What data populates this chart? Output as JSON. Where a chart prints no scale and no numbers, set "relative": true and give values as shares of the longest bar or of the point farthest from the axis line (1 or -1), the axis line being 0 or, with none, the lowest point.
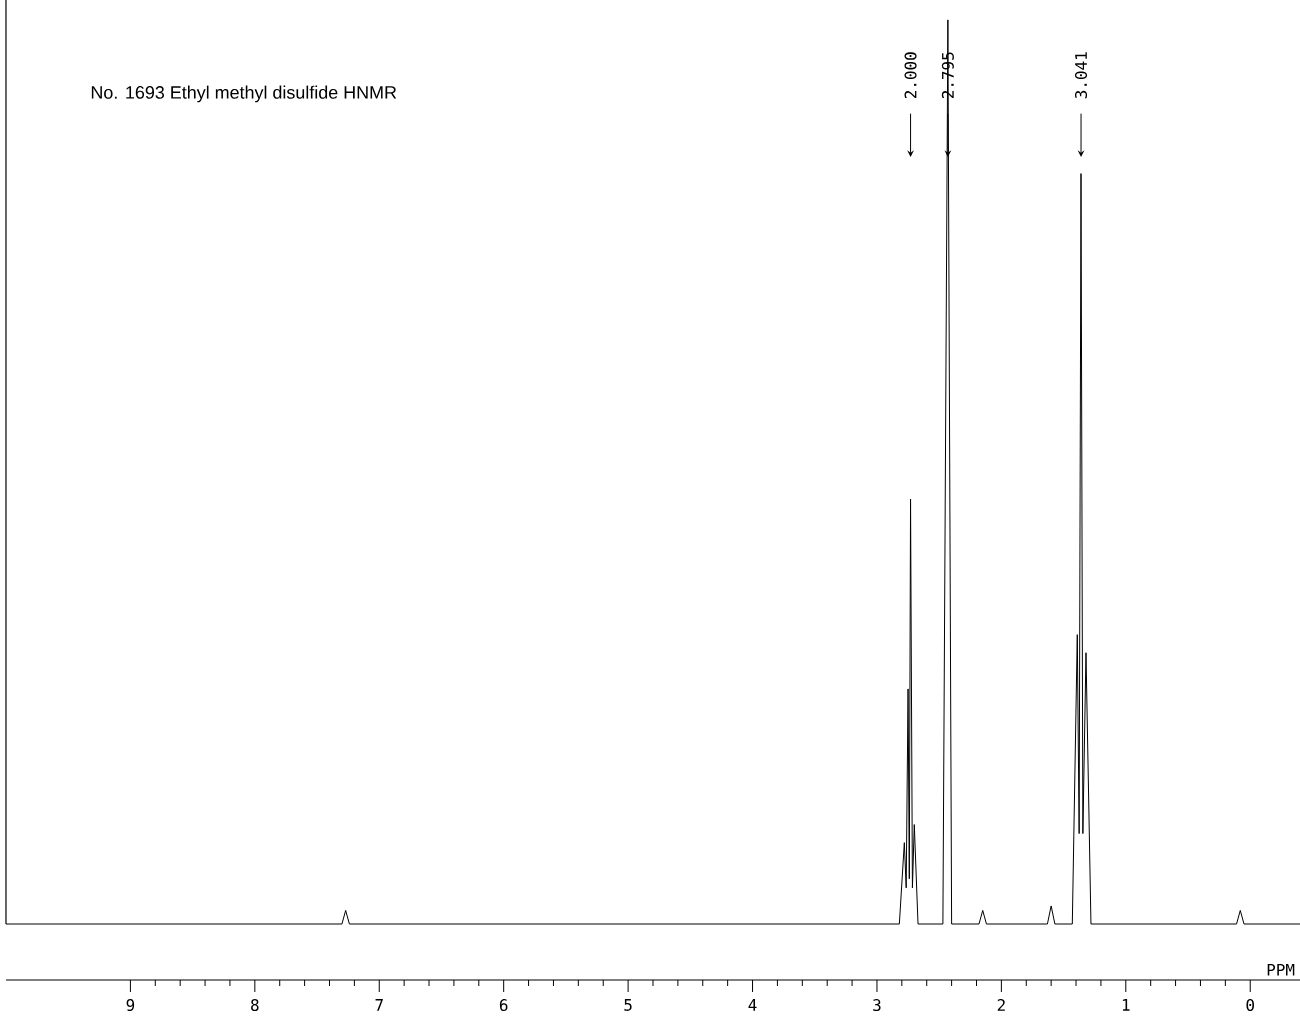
{
  "chart_data": {
    "type": "line",
    "title": "No. 1693 Ethyl methyl disulfide HNMR",
    "xlabel": "PPM",
    "relative": true,
    "xlim": [
      10,
      -0.4
    ],
    "xticks": [
      9,
      8,
      7,
      6,
      5,
      4,
      3,
      2,
      1,
      0
    ],
    "tick_labels": "x",
    "marker": "none",
    "line_style": "solid",
    "annotations": [
      {
        "text": "2.000",
        "x": 2.73
      },
      {
        "text": "2.795",
        "x": 2.43
      },
      {
        "text": "3.041",
        "x": 1.36
      }
    ],
    "series": [
      {
        "color": "#000000",
        "x": [
          10,
          7.3,
          7.27,
          7.24,
          2.82,
          2.78,
          2.765,
          2.75,
          2.74,
          2.73,
          2.715,
          2.7,
          2.67,
          2.47,
          2.43,
          2.4,
          2.18,
          2.15,
          2.12,
          1.63,
          1.6,
          1.57,
          1.43,
          1.39,
          1.375,
          1.36,
          1.345,
          1.32,
          1.28,
          0.11,
          0.08,
          0.05,
          -0.4
        ],
        "values": [
          0,
          0,
          0.015,
          0,
          0,
          0.09,
          0.04,
          0.26,
          0.05,
          0.47,
          0.04,
          0.11,
          0,
          0,
          1,
          0,
          0,
          0.015,
          0,
          0,
          0.02,
          0,
          0,
          0.32,
          0.1,
          0.83,
          0.1,
          0.3,
          0,
          0,
          0.015,
          0,
          0
        ]
      }
    ]
  }
}
